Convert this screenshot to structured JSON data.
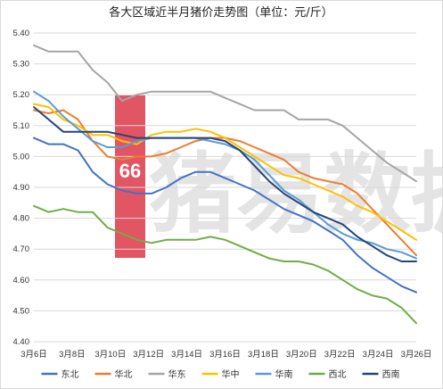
{
  "chart_data": {
    "type": "line",
    "title": "各大区域近半月猪价走势图（单位：元/斤）",
    "ylim": [
      4.4,
      5.4
    ],
    "yticks": [
      "4.40",
      "4.50",
      "4.60",
      "4.70",
      "4.80",
      "4.90",
      "5.00",
      "5.10",
      "5.20",
      "5.30",
      "5.40"
    ],
    "xtick_labels": [
      "3月6日",
      "3月8日",
      "3月10日",
      "3月12日",
      "3月14日",
      "3月16日",
      "3月18日",
      "3月20日",
      "3月22日",
      "3月24日",
      "3月26日"
    ],
    "grid": "horizontal",
    "legend_position": "bottom",
    "watermark": "猪易数据",
    "series": [
      {
        "name": "东北",
        "color": "#4472C4",
        "values": [
          5.06,
          5.04,
          5.04,
          5.02,
          4.95,
          4.91,
          4.89,
          4.88,
          4.88,
          4.9,
          4.93,
          4.95,
          4.95,
          4.93,
          4.91,
          4.89,
          4.86,
          4.83,
          4.81,
          4.79,
          4.76,
          4.73,
          4.68,
          4.64,
          4.61,
          4.58,
          4.56
        ]
      },
      {
        "name": "华北",
        "color": "#ED7D31",
        "values": [
          5.15,
          5.14,
          5.15,
          5.12,
          5.05,
          5.0,
          4.99,
          5.0,
          5.0,
          5.01,
          5.03,
          5.05,
          5.06,
          5.06,
          5.05,
          5.03,
          5.01,
          4.99,
          4.95,
          4.93,
          4.92,
          4.91,
          4.88,
          4.83,
          4.78,
          4.73,
          4.68
        ]
      },
      {
        "name": "华东",
        "color": "#A5A5A5",
        "values": [
          5.36,
          5.34,
          5.34,
          5.34,
          5.28,
          5.24,
          5.18,
          5.2,
          5.21,
          5.21,
          5.21,
          5.21,
          5.21,
          5.19,
          5.17,
          5.15,
          5.15,
          5.15,
          5.12,
          5.12,
          5.12,
          5.1,
          5.06,
          5.02,
          4.98,
          4.95,
          4.92
        ]
      },
      {
        "name": "华中",
        "color": "#FFC000",
        "values": [
          5.17,
          5.16,
          5.12,
          5.1,
          5.07,
          5.07,
          5.05,
          5.04,
          5.07,
          5.08,
          5.08,
          5.09,
          5.08,
          5.06,
          5.03,
          5.0,
          4.97,
          4.94,
          4.93,
          4.91,
          4.89,
          4.87,
          4.84,
          4.82,
          4.79,
          4.76,
          4.73
        ]
      },
      {
        "name": "华南",
        "color": "#5B9BD5",
        "values": [
          5.21,
          5.18,
          5.13,
          5.09,
          5.05,
          5.03,
          5.03,
          5.05,
          5.06,
          5.06,
          5.06,
          5.06,
          5.05,
          5.04,
          5.02,
          4.99,
          4.94,
          4.89,
          4.86,
          4.82,
          4.78,
          4.75,
          4.73,
          4.72,
          4.7,
          4.69,
          4.67
        ]
      },
      {
        "name": "西北",
        "color": "#70AD47",
        "values": [
          4.84,
          4.82,
          4.83,
          4.82,
          4.82,
          4.77,
          4.75,
          4.73,
          4.72,
          4.73,
          4.73,
          4.73,
          4.74,
          4.73,
          4.71,
          4.69,
          4.67,
          4.66,
          4.66,
          4.65,
          4.63,
          4.6,
          4.57,
          4.55,
          4.54,
          4.51,
          4.46
        ]
      },
      {
        "name": "西南",
        "color": "#264478",
        "values": [
          5.16,
          5.12,
          5.08,
          5.08,
          5.08,
          5.08,
          5.07,
          5.06,
          5.06,
          5.06,
          5.06,
          5.06,
          5.06,
          5.05,
          5.02,
          4.97,
          4.92,
          4.88,
          4.85,
          4.82,
          4.8,
          4.78,
          4.74,
          4.71,
          4.68,
          4.66,
          4.66
        ]
      }
    ]
  }
}
